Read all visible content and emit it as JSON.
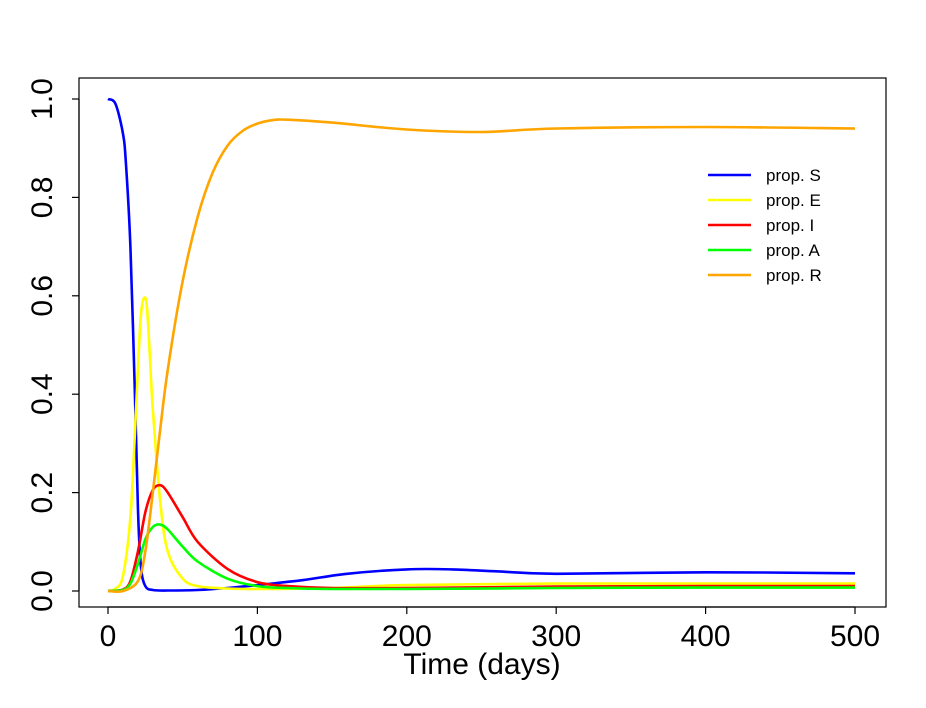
{
  "chart_data": {
    "type": "line",
    "title": "",
    "xlabel": "Time (days)",
    "ylabel": "",
    "xlim": [
      0,
      500
    ],
    "ylim": [
      0,
      1
    ],
    "xticks": [
      0,
      100,
      200,
      300,
      400,
      500
    ],
    "xtick_labels": [
      "0",
      "100",
      "200",
      "300",
      "400",
      "500"
    ],
    "yticks": [
      0,
      0.2,
      0.4,
      0.6,
      0.8,
      1
    ],
    "ytick_labels": [
      "0.0",
      "0.2",
      "0.4",
      "0.6",
      "0.8",
      "1.0"
    ],
    "grid": false,
    "legend_position": "top-right",
    "series": [
      {
        "name": "prop. S",
        "color": "#0000ff",
        "x": [
          0,
          5,
          10,
          12,
          15,
          18,
          20,
          22,
          25,
          30,
          40,
          60,
          80,
          100,
          130,
          160,
          200,
          230,
          260,
          300,
          400,
          500
        ],
        "y": [
          1.0,
          0.99,
          0.93,
          0.87,
          0.7,
          0.4,
          0.17,
          0.05,
          0.01,
          0.002,
          0.001,
          0.002,
          0.006,
          0.012,
          0.022,
          0.035,
          0.044,
          0.044,
          0.04,
          0.035,
          0.038,
          0.036
        ]
      },
      {
        "name": "prop. E",
        "color": "#ffff00",
        "x": [
          0,
          5,
          10,
          15,
          18,
          20,
          22,
          24,
          26,
          28,
          30,
          35,
          40,
          50,
          60,
          80,
          100,
          150,
          200,
          300,
          400,
          500
        ],
        "y": [
          0,
          0.005,
          0.03,
          0.15,
          0.32,
          0.45,
          0.56,
          0.595,
          0.58,
          0.48,
          0.37,
          0.18,
          0.08,
          0.025,
          0.01,
          0.005,
          0.004,
          0.006,
          0.012,
          0.015,
          0.015,
          0.015
        ]
      },
      {
        "name": "prop. I",
        "color": "#ff0000",
        "x": [
          0,
          10,
          15,
          20,
          25,
          30,
          35,
          40,
          50,
          60,
          80,
          100,
          120,
          150,
          200,
          300,
          400,
          500
        ],
        "y": [
          0,
          0.003,
          0.02,
          0.08,
          0.16,
          0.205,
          0.215,
          0.2,
          0.15,
          0.1,
          0.045,
          0.018,
          0.01,
          0.006,
          0.006,
          0.009,
          0.01,
          0.01
        ]
      },
      {
        "name": "prop. A",
        "color": "#00ff00",
        "x": [
          0,
          10,
          15,
          20,
          25,
          30,
          35,
          40,
          50,
          60,
          80,
          100,
          120,
          150,
          200,
          300,
          400,
          500
        ],
        "y": [
          0,
          0.002,
          0.015,
          0.055,
          0.105,
          0.13,
          0.135,
          0.125,
          0.09,
          0.06,
          0.025,
          0.01,
          0.006,
          0.004,
          0.004,
          0.006,
          0.007,
          0.007
        ]
      },
      {
        "name": "prop. R",
        "color": "#ffa500",
        "x": [
          0,
          10,
          20,
          25,
          30,
          35,
          40,
          50,
          60,
          70,
          80,
          90,
          100,
          110,
          120,
          150,
          200,
          250,
          300,
          400,
          500
        ],
        "y": [
          0,
          0.0,
          0.02,
          0.08,
          0.2,
          0.33,
          0.45,
          0.63,
          0.76,
          0.85,
          0.905,
          0.935,
          0.95,
          0.957,
          0.958,
          0.952,
          0.938,
          0.933,
          0.94,
          0.943,
          0.94
        ]
      }
    ]
  }
}
